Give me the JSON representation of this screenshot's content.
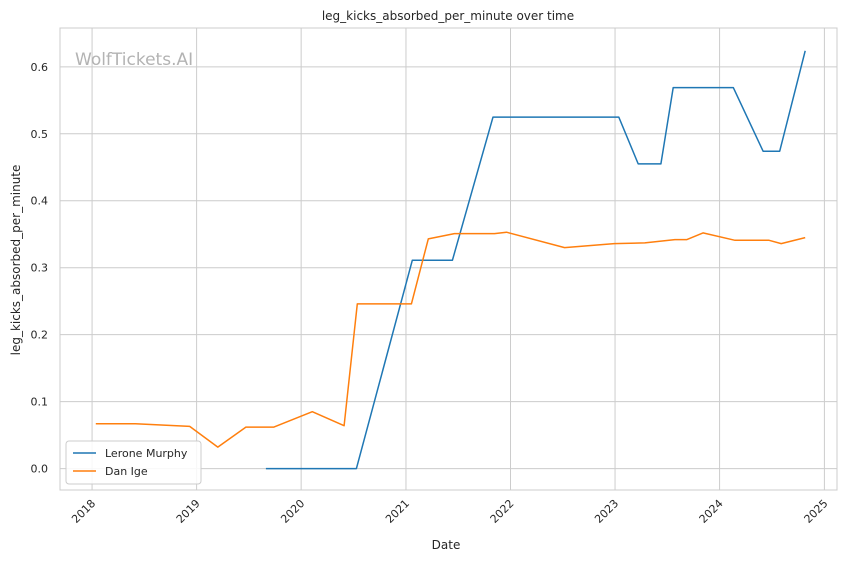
{
  "chart_data": {
    "type": "line",
    "title": "leg_kicks_absorbed_per_minute over time",
    "xlabel": "Date",
    "ylabel": "leg_kicks_absorbed_per_minute",
    "watermark": "WolfTickets.AI",
    "x_ticks": [
      "2018",
      "2019",
      "2020",
      "2021",
      "2022",
      "2023",
      "2024",
      "2025"
    ],
    "y_ticks": [
      "0.0",
      "0.1",
      "0.2",
      "0.3",
      "0.4",
      "0.5",
      "0.6"
    ],
    "ylim": [
      -0.032,
      0.658
    ],
    "xlim": [
      "2017-09-11",
      "2025-02-14"
    ],
    "grid": true,
    "legend_position": "lower-left",
    "series": [
      {
        "name": "Lerone Murphy",
        "color": "#1f77b4",
        "points": [
          [
            "2019-08-31",
            0.0
          ],
          [
            "2020-07-12",
            0.0
          ],
          [
            "2021-01-23",
            0.311
          ],
          [
            "2021-06-12",
            0.311
          ],
          [
            "2021-11-01",
            0.525
          ],
          [
            "2023-01-14",
            0.525
          ],
          [
            "2023-03-23",
            0.455
          ],
          [
            "2023-06-10",
            0.455
          ],
          [
            "2023-07-23",
            0.569
          ],
          [
            "2024-02-18",
            0.569
          ],
          [
            "2024-06-01",
            0.474
          ],
          [
            "2024-07-29",
            0.474
          ],
          [
            "2024-10-26",
            0.624
          ]
        ]
      },
      {
        "name": "Dan Ige",
        "color": "#ff7f0e",
        "points": [
          [
            "2018-01-14",
            0.067
          ],
          [
            "2018-06-01",
            0.067
          ],
          [
            "2018-12-08",
            0.063
          ],
          [
            "2019-03-16",
            0.032
          ],
          [
            "2019-06-22",
            0.062
          ],
          [
            "2019-09-28",
            0.062
          ],
          [
            "2020-02-09",
            0.085
          ],
          [
            "2020-05-30",
            0.064
          ],
          [
            "2020-07-15",
            0.246
          ],
          [
            "2021-01-20",
            0.246
          ],
          [
            "2021-03-20",
            0.343
          ],
          [
            "2021-06-19",
            0.351
          ],
          [
            "2021-11-06",
            0.351
          ],
          [
            "2021-12-18",
            0.353
          ],
          [
            "2022-07-09",
            0.33
          ],
          [
            "2022-12-29",
            0.336
          ],
          [
            "2023-04-15",
            0.337
          ],
          [
            "2023-07-29",
            0.342
          ],
          [
            "2023-09-09",
            0.342
          ],
          [
            "2023-11-04",
            0.352
          ],
          [
            "2024-02-24",
            0.341
          ],
          [
            "2024-06-22",
            0.341
          ],
          [
            "2024-08-03",
            0.336
          ],
          [
            "2024-10-26",
            0.345
          ]
        ]
      }
    ]
  }
}
